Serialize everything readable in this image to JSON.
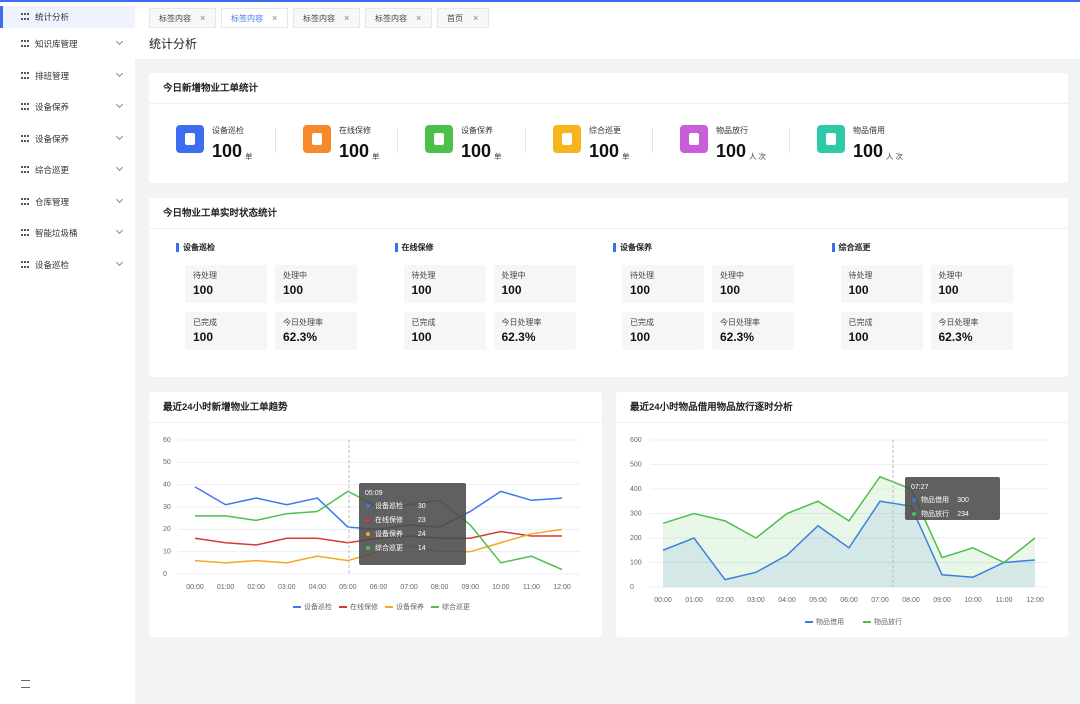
{
  "sidebar": {
    "items": [
      "统计分析",
      "知识库管理",
      "排班管理",
      "设备保养",
      "设备保养",
      "综合巡更",
      "仓库管理",
      "智能垃圾桶",
      "设备巡检"
    ]
  },
  "tabs": [
    "标签内容",
    "标签内容",
    "标签内容",
    "标签内容",
    "首页"
  ],
  "page_title": "统计分析",
  "new_orders": {
    "title": "今日新增物业工单统计",
    "items": [
      {
        "label": "设备巡检",
        "value": 100,
        "unit": "单",
        "color": "#3d6ef0"
      },
      {
        "label": "在线保修",
        "value": 100,
        "unit": "单",
        "color": "#f58a2c"
      },
      {
        "label": "设备保养",
        "value": 100,
        "unit": "单",
        "color": "#4dc04a"
      },
      {
        "label": "综合巡更",
        "value": 100,
        "unit": "单",
        "color": "#f6b51c"
      },
      {
        "label": "物品放行",
        "value": 100,
        "unit": "人次",
        "color": "#c95fd8"
      },
      {
        "label": "物品借用",
        "value": 100,
        "unit": "人次",
        "color": "#2ecaa8"
      }
    ]
  },
  "status": {
    "title": "今日物业工单实时状态统计",
    "groups": [
      {
        "name": "设备巡检",
        "cells": [
          {
            "label": "待处理",
            "value": 100
          },
          {
            "label": "处理中",
            "value": 100
          },
          {
            "label": "已完成",
            "value": 100
          },
          {
            "label": "今日处理率",
            "value": "62.3%"
          }
        ]
      },
      {
        "name": "在线保修",
        "cells": [
          {
            "label": "待处理",
            "value": 100
          },
          {
            "label": "处理中",
            "value": 100
          },
          {
            "label": "已完成",
            "value": 100
          },
          {
            "label": "今日处理率",
            "value": "62.3%"
          }
        ]
      },
      {
        "name": "设备保养",
        "cells": [
          {
            "label": "待处理",
            "value": 100
          },
          {
            "label": "处理中",
            "value": 100
          },
          {
            "label": "已完成",
            "value": 100
          },
          {
            "label": "今日处理率",
            "value": "62.3%"
          }
        ]
      },
      {
        "name": "综合巡更",
        "cells": [
          {
            "label": "待处理",
            "value": 100
          },
          {
            "label": "处理中",
            "value": 100
          },
          {
            "label": "已完成",
            "value": 100
          },
          {
            "label": "今日处理率",
            "value": "62.3%"
          }
        ]
      }
    ]
  },
  "chart_data": [
    {
      "type": "line",
      "title": "最近24小时新增物业工单趋势",
      "categories": [
        "00:00",
        "01:00",
        "02:00",
        "03:00",
        "04:00",
        "05:00",
        "06:00",
        "07:00",
        "08:00",
        "09:00",
        "10:00",
        "11:00",
        "12:00"
      ],
      "ylim": [
        0,
        60
      ],
      "yticks": [
        0,
        10,
        20,
        30,
        40,
        50,
        60
      ],
      "grid": true,
      "series": [
        {
          "name": "设备巡检",
          "color": "#3d78f0",
          "values": [
            39,
            31,
            34,
            31,
            34,
            21,
            20,
            22,
            21,
            28,
            37,
            33,
            34
          ]
        },
        {
          "name": "在线保修",
          "color": "#d63a32",
          "values": [
            16,
            14,
            13,
            16,
            16,
            14,
            16,
            17,
            16,
            16,
            19,
            17,
            17
          ]
        },
        {
          "name": "设备保养",
          "color": "#f5a623",
          "values": [
            6,
            5,
            6,
            5,
            8,
            6,
            10,
            13,
            10,
            10,
            14,
            18,
            20
          ]
        },
        {
          "name": "综合巡更",
          "color": "#4cbf4c",
          "values": [
            26,
            26,
            24,
            27,
            28,
            37,
            30,
            31,
            33,
            22,
            5,
            8,
            2
          ]
        }
      ],
      "tooltip": {
        "label": "05:09",
        "rows": [
          {
            "name": "设备巡检",
            "value": 30
          },
          {
            "name": "在线保修",
            "value": 23
          },
          {
            "name": "设备保养",
            "value": 24
          },
          {
            "name": "综合巡更",
            "value": 14
          }
        ]
      }
    },
    {
      "type": "area",
      "title": "最近24小时物品借用物品放行逐时分析",
      "categories": [
        "00:00",
        "01:00",
        "02:00",
        "03:00",
        "04:00",
        "05:00",
        "06:00",
        "07:00",
        "08:00",
        "09:00",
        "10:00",
        "11:00",
        "12:00"
      ],
      "ylim": [
        0,
        600
      ],
      "yticks": [
        0,
        100,
        200,
        300,
        400,
        500,
        600
      ],
      "grid": true,
      "series": [
        {
          "name": "物品借用",
          "color": "#3d78f0",
          "values": [
            150,
            200,
            30,
            60,
            130,
            250,
            160,
            350,
            330,
            50,
            40,
            100,
            110
          ]
        },
        {
          "name": "物品放行",
          "color": "#4cbf4c",
          "values": [
            260,
            300,
            270,
            200,
            300,
            350,
            270,
            450,
            400,
            120,
            160,
            100,
            200
          ]
        }
      ],
      "tooltip": {
        "label": "07:27",
        "rows": [
          {
            "name": "物品借用",
            "value": 300
          },
          {
            "name": "物品放行",
            "value": 234
          }
        ]
      }
    }
  ]
}
